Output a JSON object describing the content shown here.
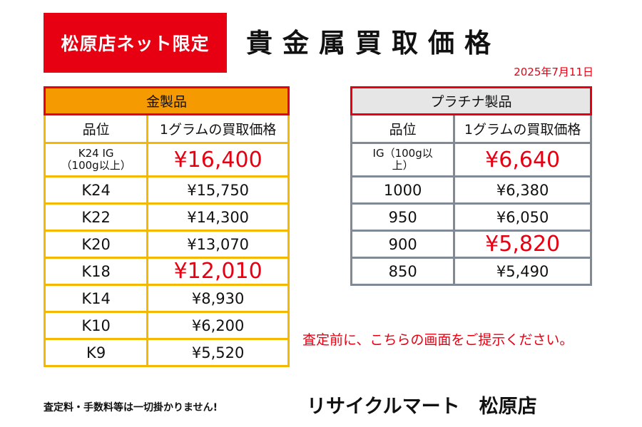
{
  "badge": "松原店ネット限定",
  "title": "貴金属買取価格",
  "date": "2025年7月11日",
  "gold": {
    "caption": "金製品",
    "col_grade": "品位",
    "col_price": "1グラムの買取価格",
    "rows": [
      {
        "grade": "K24 IG\n（100g以上）",
        "price": "¥16,400"
      },
      {
        "grade": "K24",
        "price": "¥15,750"
      },
      {
        "grade": "K22",
        "price": "¥14,300"
      },
      {
        "grade": "K20",
        "price": "¥13,070"
      },
      {
        "grade": "K18",
        "price": "¥12,010"
      },
      {
        "grade": "K14",
        "price": "¥8,930"
      },
      {
        "grade": "K10",
        "price": "¥6,200"
      },
      {
        "grade": "K9",
        "price": "¥5,520"
      }
    ]
  },
  "platinum": {
    "caption": "プラチナ製品",
    "col_grade": "品位",
    "col_price": "1グラムの買取価格",
    "rows": [
      {
        "grade": "IG（100g以\n上）",
        "price": "¥6,640"
      },
      {
        "grade": "1000",
        "price": "¥6,380"
      },
      {
        "grade": "950",
        "price": "¥6,050"
      },
      {
        "grade": "900",
        "price": "¥5,820"
      },
      {
        "grade": "850",
        "price": "¥5,490"
      }
    ]
  },
  "notice": "査定前に、こちらの画面をご提示ください。",
  "footer_note": "査定料・手数料等は一切掛かりません!",
  "store_name": "リサイクルマート　松原店",
  "colors": {
    "accent_red": "#e60012",
    "gold_header": "#f59a00",
    "gold_grid": "#f5b800",
    "plat_header": "#e6e6e6",
    "plat_grid": "#7f8a96"
  }
}
